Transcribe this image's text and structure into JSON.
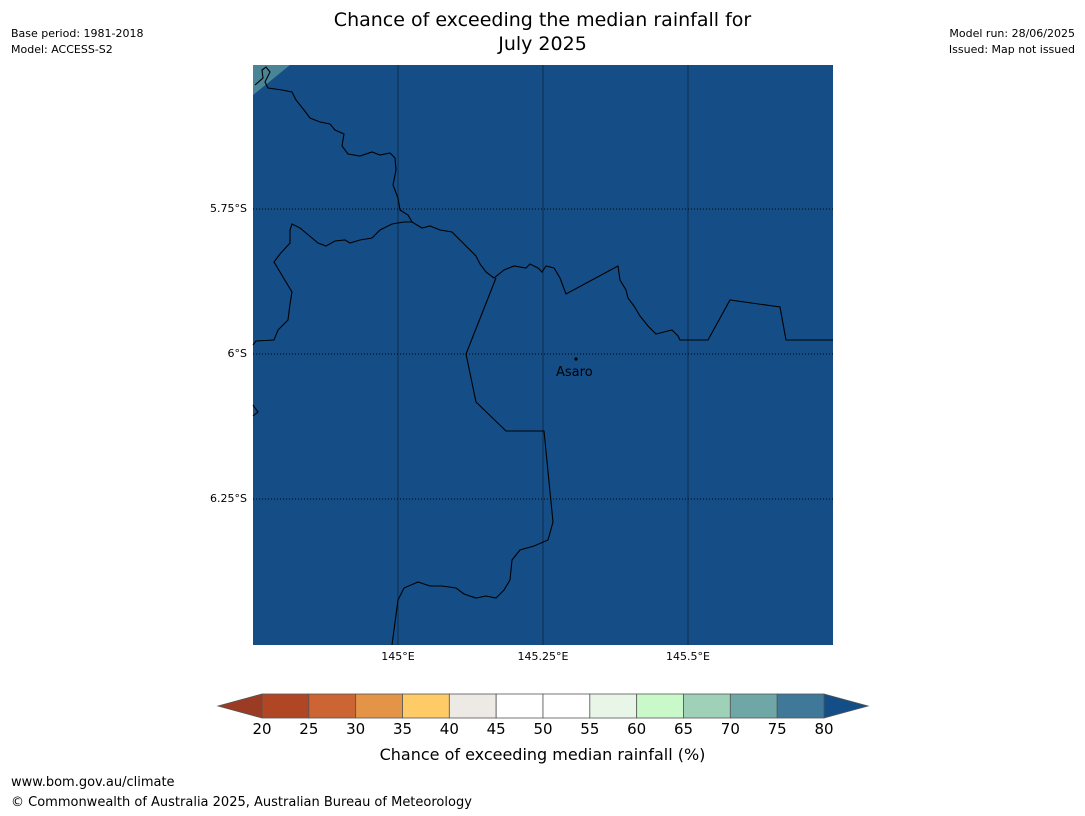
{
  "title_line1": "Chance of exceeding the median rainfall for",
  "title_line2": "July 2025",
  "meta_left": [
    "Base period: 1981-2018",
    "Model: ACCESS-S2"
  ],
  "meta_right": [
    "Model run: 28/06/2025",
    "Issued: Map not issued"
  ],
  "lat_labels": [
    "5.75°S",
    "6°S",
    "6.25°S"
  ],
  "lon_labels": [
    "145°E",
    "145.25°E",
    "145.5°E"
  ],
  "place": {
    "name": "Asaro",
    "marker": "dot"
  },
  "map_fill_color": "#154e87",
  "corner_fill_color": "#4a8597",
  "colorbar": {
    "label": "Chance of exceeding median rainfall (%)",
    "ticks": [
      "20",
      "25",
      "30",
      "35",
      "40",
      "45",
      "50",
      "55",
      "60",
      "65",
      "70",
      "75",
      "80"
    ],
    "colors": [
      "#b04624",
      "#cd6433",
      "#e39446",
      "#fecb67",
      "#ede9e5",
      "#ffffff",
      "#ffffff",
      "#e8f6e8",
      "#c9f9c9",
      "#9fd1b9",
      "#6fa6a6",
      "#40789a"
    ],
    "under_color": "#9b3b23",
    "over_color": "#134e86"
  },
  "footer": {
    "url": "www.bom.gov.au/climate",
    "copyright": "© Commonwealth of Australia 2025, Australian Bureau of Meteorology"
  }
}
